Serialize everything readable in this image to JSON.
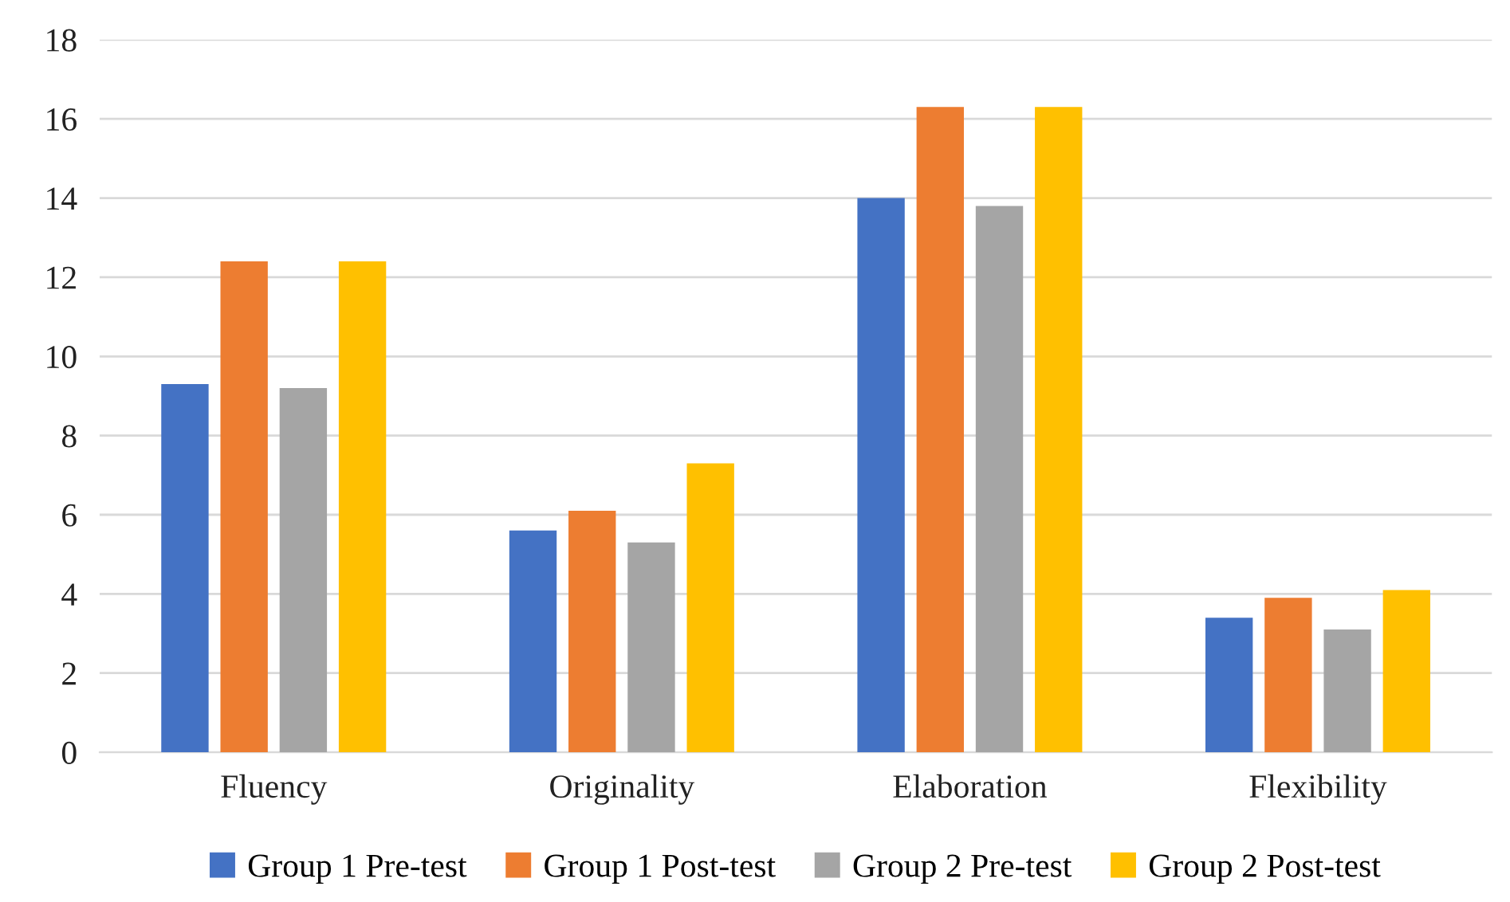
{
  "chart_data": {
    "type": "bar",
    "categories": [
      "Fluency",
      "Originality",
      "Elaboration",
      "Flexibility"
    ],
    "series": [
      {
        "name": "Group 1 Pre-test",
        "color": "#4472c4",
        "values": [
          9.3,
          5.6,
          14.0,
          3.4
        ]
      },
      {
        "name": "Group 1 Post-test",
        "color": "#ed7d31",
        "values": [
          12.4,
          6.1,
          16.3,
          3.9
        ]
      },
      {
        "name": "Group 2 Pre-test",
        "color": "#a5a5a5",
        "values": [
          9.2,
          5.3,
          13.8,
          3.1
        ]
      },
      {
        "name": "Group 2 Post-test",
        "color": "#ffc000",
        "values": [
          12.4,
          7.3,
          16.3,
          4.1
        ]
      }
    ],
    "ylim": [
      0,
      18
    ],
    "yticks": [
      0,
      2,
      4,
      6,
      8,
      10,
      12,
      14,
      16,
      18
    ],
    "grid": "y",
    "legend": "bottom"
  }
}
